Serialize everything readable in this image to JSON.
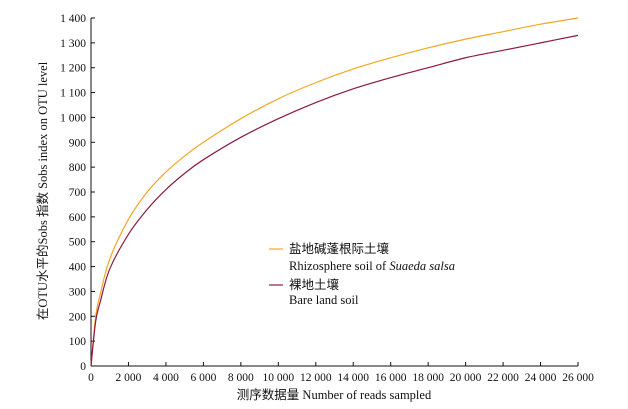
{
  "chart_data": {
    "type": "line",
    "xlabel": "测序数据量 Number of reads sampled",
    "ylabel": "在OTU水平的Sobs 指数 Sobs index on OTU level",
    "xlim": [
      0,
      26000
    ],
    "ylim": [
      0,
      1400
    ],
    "x_ticks": [
      0,
      2000,
      4000,
      6000,
      8000,
      10000,
      12000,
      14000,
      16000,
      18000,
      20000,
      22000,
      24000,
      26000
    ],
    "x_tick_labels": [
      "0",
      "2 000",
      "4 000",
      "6 000",
      "8 000",
      "10 000",
      "12 000",
      "14 000",
      "16 000",
      "18 000",
      "20 000",
      "22 000",
      "24 000",
      "26 000"
    ],
    "y_ticks": [
      0,
      100,
      200,
      300,
      400,
      500,
      600,
      700,
      800,
      900,
      1000,
      1100,
      1200,
      1300,
      1400
    ],
    "y_tick_labels": [
      "0",
      "100",
      "200",
      "300",
      "400",
      "500",
      "600",
      "700",
      "800",
      "900",
      "1 000",
      "1 100",
      "1 200",
      "1 300",
      "1 400"
    ],
    "grid": false,
    "legend_position": "center-right",
    "series": [
      {
        "name_zh": "盐地碱蓬根际土壤",
        "name_en_prefix": "Rhizosphere soil of ",
        "name_en_italic": "Suaeda salsa",
        "color": "#f5a623",
        "x": [
          0,
          250,
          500,
          1000,
          2000,
          3000,
          4000,
          5000,
          6000,
          8000,
          10000,
          12000,
          14000,
          16000,
          18000,
          20000,
          22000,
          24000,
          26000
        ],
        "y": [
          0,
          200,
          290,
          430,
          590,
          700,
          780,
          845,
          900,
          995,
          1075,
          1140,
          1195,
          1240,
          1280,
          1315,
          1345,
          1375,
          1400
        ]
      },
      {
        "name_zh": "裸地土壤",
        "name_en": "Bare land soil",
        "color": "#8b1a3c",
        "x": [
          0,
          250,
          500,
          1000,
          2000,
          3000,
          4000,
          5000,
          6000,
          8000,
          10000,
          12000,
          14000,
          16000,
          18000,
          20000,
          22000,
          24000,
          26000
        ],
        "y": [
          0,
          180,
          260,
          390,
          530,
          630,
          710,
          775,
          830,
          920,
          995,
          1060,
          1115,
          1160,
          1200,
          1240,
          1270,
          1300,
          1330
        ]
      }
    ]
  }
}
